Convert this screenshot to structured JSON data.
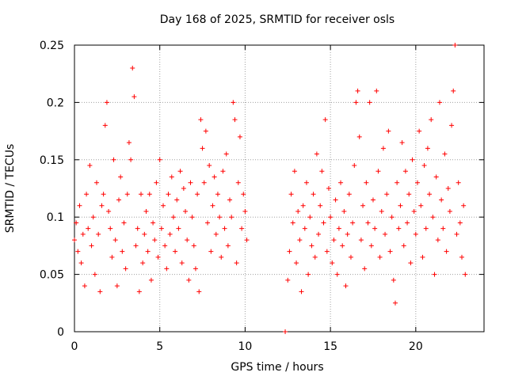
{
  "chart_data": {
    "type": "scatter",
    "title": "Day 168 of 2025, SRMTID for receiver osls",
    "xlabel": "GPS time / hours",
    "ylabel": "SRMTID / TECUs",
    "xlim": [
      0,
      24
    ],
    "ylim": [
      0,
      0.25
    ],
    "xticks": [
      0,
      5,
      10,
      15,
      20
    ],
    "yticks": [
      0,
      0.05,
      0.1,
      0.15,
      0.2,
      0.25
    ],
    "xtick_labels": [
      "0",
      "5",
      "10",
      "15",
      "20"
    ],
    "ytick_labels": [
      "0",
      "0.05",
      "0.1",
      "0.15",
      "0.2",
      "0.25"
    ],
    "grid": true,
    "marker": "+",
    "series": [
      {
        "name": "osls",
        "color": "#ff0000",
        "points": [
          [
            0.0,
            0.08
          ],
          [
            0.1,
            0.095
          ],
          [
            0.2,
            0.07
          ],
          [
            0.3,
            0.11
          ],
          [
            0.4,
            0.06
          ],
          [
            0.5,
            0.085
          ],
          [
            0.6,
            0.04
          ],
          [
            0.7,
            0.12
          ],
          [
            0.8,
            0.09
          ],
          [
            0.9,
            0.145
          ],
          [
            1.0,
            0.075
          ],
          [
            1.1,
            0.1
          ],
          [
            1.2,
            0.05
          ],
          [
            1.3,
            0.13
          ],
          [
            1.4,
            0.085
          ],
          [
            1.5,
            0.035
          ],
          [
            1.6,
            0.11
          ],
          [
            1.7,
            0.12
          ],
          [
            1.8,
            0.18
          ],
          [
            1.9,
            0.2
          ],
          [
            2.0,
            0.105
          ],
          [
            2.1,
            0.09
          ],
          [
            2.2,
            0.065
          ],
          [
            2.3,
            0.15
          ],
          [
            2.4,
            0.08
          ],
          [
            2.5,
            0.04
          ],
          [
            2.6,
            0.115
          ],
          [
            2.7,
            0.135
          ],
          [
            2.8,
            0.07
          ],
          [
            2.9,
            0.095
          ],
          [
            3.0,
            0.055
          ],
          [
            3.1,
            0.12
          ],
          [
            3.2,
            0.165
          ],
          [
            3.3,
            0.15
          ],
          [
            3.4,
            0.23
          ],
          [
            3.5,
            0.205
          ],
          [
            3.6,
            0.075
          ],
          [
            3.7,
            0.09
          ],
          [
            3.8,
            0.035
          ],
          [
            3.9,
            0.12
          ],
          [
            4.0,
            0.06
          ],
          [
            4.1,
            0.085
          ],
          [
            4.2,
            0.105
          ],
          [
            4.3,
            0.07
          ],
          [
            4.4,
            0.12
          ],
          [
            4.5,
            0.045
          ],
          [
            4.6,
            0.095
          ],
          [
            4.7,
            0.08
          ],
          [
            4.8,
            0.13
          ],
          [
            4.9,
            0.065
          ],
          [
            5.0,
            0.15
          ],
          [
            5.1,
            0.09
          ],
          [
            5.2,
            0.11
          ],
          [
            5.3,
            0.075
          ],
          [
            5.4,
            0.055
          ],
          [
            5.5,
            0.12
          ],
          [
            5.6,
            0.085
          ],
          [
            5.7,
            0.135
          ],
          [
            5.8,
            0.1
          ],
          [
            5.9,
            0.07
          ],
          [
            6.0,
            0.115
          ],
          [
            6.1,
            0.09
          ],
          [
            6.2,
            0.14
          ],
          [
            6.3,
            0.06
          ],
          [
            6.4,
            0.125
          ],
          [
            6.5,
            0.105
          ],
          [
            6.6,
            0.08
          ],
          [
            6.7,
            0.045
          ],
          [
            6.8,
            0.13
          ],
          [
            6.9,
            0.1
          ],
          [
            7.0,
            0.075
          ],
          [
            7.1,
            0.055
          ],
          [
            7.2,
            0.12
          ],
          [
            7.3,
            0.035
          ],
          [
            7.4,
            0.185
          ],
          [
            7.5,
            0.16
          ],
          [
            7.6,
            0.13
          ],
          [
            7.7,
            0.175
          ],
          [
            7.8,
            0.095
          ],
          [
            7.9,
            0.145
          ],
          [
            8.0,
            0.07
          ],
          [
            8.1,
            0.11
          ],
          [
            8.2,
            0.135
          ],
          [
            8.3,
            0.085
          ],
          [
            8.4,
            0.12
          ],
          [
            8.5,
            0.1
          ],
          [
            8.6,
            0.065
          ],
          [
            8.7,
            0.14
          ],
          [
            8.8,
            0.09
          ],
          [
            8.9,
            0.155
          ],
          [
            9.0,
            0.075
          ],
          [
            9.1,
            0.115
          ],
          [
            9.2,
            0.1
          ],
          [
            9.3,
            0.2
          ],
          [
            9.4,
            0.185
          ],
          [
            9.5,
            0.06
          ],
          [
            9.6,
            0.13
          ],
          [
            9.7,
            0.17
          ],
          [
            9.8,
            0.09
          ],
          [
            9.9,
            0.12
          ],
          [
            10.0,
            0.105
          ],
          [
            10.1,
            0.08
          ],
          [
            12.35,
            0.0
          ],
          [
            12.5,
            0.045
          ],
          [
            12.6,
            0.07
          ],
          [
            12.7,
            0.12
          ],
          [
            12.8,
            0.095
          ],
          [
            12.9,
            0.14
          ],
          [
            13.0,
            0.06
          ],
          [
            13.1,
            0.105
          ],
          [
            13.2,
            0.08
          ],
          [
            13.3,
            0.035
          ],
          [
            13.4,
            0.11
          ],
          [
            13.5,
            0.09
          ],
          [
            13.6,
            0.13
          ],
          [
            13.7,
            0.05
          ],
          [
            13.8,
            0.1
          ],
          [
            13.9,
            0.075
          ],
          [
            14.0,
            0.12
          ],
          [
            14.1,
            0.065
          ],
          [
            14.2,
            0.155
          ],
          [
            14.3,
            0.085
          ],
          [
            14.4,
            0.11
          ],
          [
            14.5,
            0.14
          ],
          [
            14.6,
            0.095
          ],
          [
            14.7,
            0.185
          ],
          [
            14.8,
            0.07
          ],
          [
            14.9,
            0.125
          ],
          [
            15.0,
            0.1
          ],
          [
            15.1,
            0.06
          ],
          [
            15.2,
            0.08
          ],
          [
            15.3,
            0.115
          ],
          [
            15.4,
            0.05
          ],
          [
            15.5,
            0.09
          ],
          [
            15.6,
            0.13
          ],
          [
            15.7,
            0.075
          ],
          [
            15.8,
            0.105
          ],
          [
            15.9,
            0.04
          ],
          [
            16.0,
            0.085
          ],
          [
            16.1,
            0.12
          ],
          [
            16.2,
            0.065
          ],
          [
            16.3,
            0.095
          ],
          [
            16.4,
            0.145
          ],
          [
            16.5,
            0.2
          ],
          [
            16.6,
            0.21
          ],
          [
            16.7,
            0.17
          ],
          [
            16.8,
            0.08
          ],
          [
            16.9,
            0.11
          ],
          [
            17.0,
            0.055
          ],
          [
            17.1,
            0.13
          ],
          [
            17.2,
            0.095
          ],
          [
            17.3,
            0.2
          ],
          [
            17.4,
            0.075
          ],
          [
            17.5,
            0.115
          ],
          [
            17.6,
            0.09
          ],
          [
            17.7,
            0.21
          ],
          [
            17.8,
            0.14
          ],
          [
            17.9,
            0.065
          ],
          [
            18.0,
            0.105
          ],
          [
            18.1,
            0.16
          ],
          [
            18.2,
            0.085
          ],
          [
            18.3,
            0.12
          ],
          [
            18.4,
            0.175
          ],
          [
            18.5,
            0.07
          ],
          [
            18.6,
            0.1
          ],
          [
            18.7,
            0.045
          ],
          [
            18.8,
            0.025
          ],
          [
            18.9,
            0.13
          ],
          [
            19.0,
            0.09
          ],
          [
            19.1,
            0.11
          ],
          [
            19.2,
            0.165
          ],
          [
            19.3,
            0.075
          ],
          [
            19.4,
            0.14
          ],
          [
            19.5,
            0.095
          ],
          [
            19.6,
            0.12
          ],
          [
            19.7,
            0.06
          ],
          [
            19.8,
            0.15
          ],
          [
            19.9,
            0.105
          ],
          [
            20.0,
            0.085
          ],
          [
            20.1,
            0.13
          ],
          [
            20.2,
            0.175
          ],
          [
            20.3,
            0.11
          ],
          [
            20.4,
            0.065
          ],
          [
            20.5,
            0.145
          ],
          [
            20.6,
            0.09
          ],
          [
            20.7,
            0.16
          ],
          [
            20.8,
            0.12
          ],
          [
            20.9,
            0.185
          ],
          [
            21.0,
            0.1
          ],
          [
            21.1,
            0.05
          ],
          [
            21.2,
            0.135
          ],
          [
            21.3,
            0.08
          ],
          [
            21.4,
            0.2
          ],
          [
            21.5,
            0.115
          ],
          [
            21.6,
            0.09
          ],
          [
            21.7,
            0.155
          ],
          [
            21.8,
            0.07
          ],
          [
            21.9,
            0.125
          ],
          [
            22.0,
            0.105
          ],
          [
            22.1,
            0.18
          ],
          [
            22.2,
            0.21
          ],
          [
            22.3,
            0.25
          ],
          [
            22.4,
            0.085
          ],
          [
            22.5,
            0.13
          ],
          [
            22.6,
            0.095
          ],
          [
            22.7,
            0.065
          ],
          [
            22.8,
            0.11
          ],
          [
            22.9,
            0.05
          ]
        ]
      }
    ]
  }
}
